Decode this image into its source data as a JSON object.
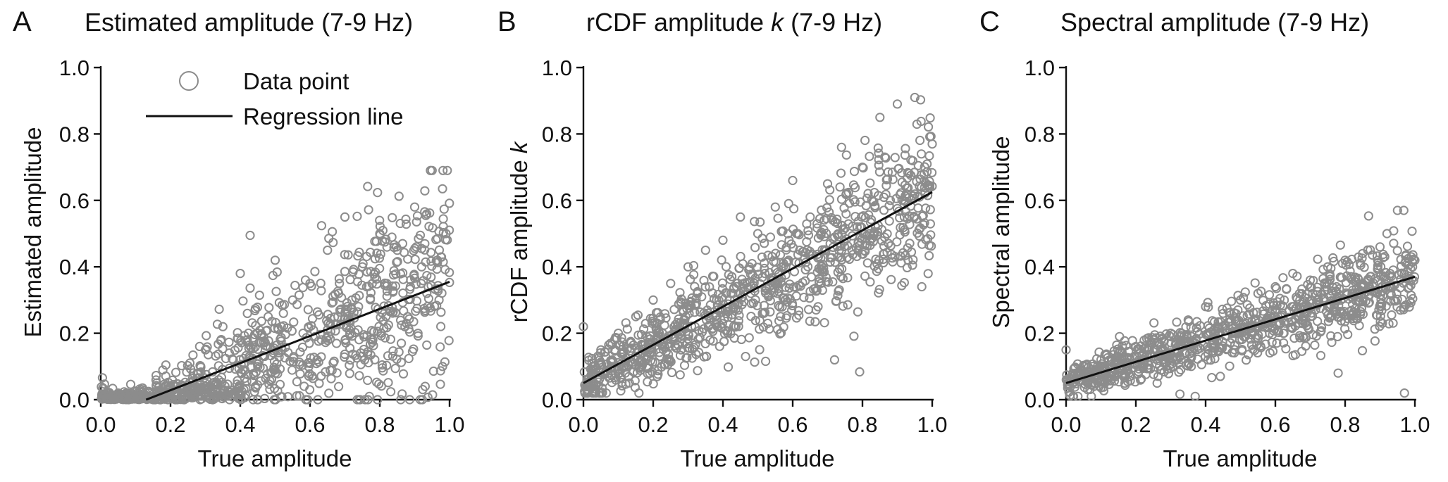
{
  "chart_data": [
    {
      "type": "scatter",
      "letter": "A",
      "title": "Estimated amplitude (7-9 Hz)",
      "xlabel": "True amplitude",
      "ylabel": "Estimated amplitude",
      "xlim": [
        0,
        1
      ],
      "ylim": [
        0,
        1
      ],
      "xticks": [
        "0.0",
        "0.2",
        "0.4",
        "0.6",
        "0.8",
        "1.0"
      ],
      "yticks": [
        "0.0",
        "0.2",
        "0.4",
        "0.6",
        "0.8",
        "1.0"
      ],
      "legend": {
        "position": "top-left",
        "point_label": "Data point",
        "line_label": "Regression line"
      },
      "regression": {
        "x": [
          0.13,
          1.0
        ],
        "y": [
          0.0,
          0.355
        ]
      },
      "points_summary": {
        "n": 1000,
        "x_range": [
          0,
          1
        ],
        "y_range": [
          0,
          0.69
        ],
        "description_hidden": true
      },
      "points": [
        [
          0.02,
          0.01
        ],
        [
          0.05,
          0.02
        ],
        [
          0.08,
          0.0
        ],
        [
          0.12,
          0.03
        ],
        [
          0.15,
          0.01
        ],
        [
          0.2,
          0.04
        ],
        [
          0.25,
          0.02
        ],
        [
          0.28,
          0.08
        ],
        [
          0.3,
          0.15
        ],
        [
          0.33,
          0.05
        ],
        [
          0.35,
          0.22
        ],
        [
          0.38,
          0.12
        ],
        [
          0.4,
          0.38
        ],
        [
          0.42,
          0.18
        ],
        [
          0.45,
          0.1
        ],
        [
          0.48,
          0.25
        ],
        [
          0.5,
          0.42
        ],
        [
          0.52,
          0.15
        ],
        [
          0.55,
          0.3
        ],
        [
          0.58,
          0.2
        ],
        [
          0.6,
          0.35
        ],
        [
          0.62,
          0.12
        ],
        [
          0.65,
          0.45
        ],
        [
          0.68,
          0.25
        ],
        [
          0.7,
          0.55
        ],
        [
          0.72,
          0.3
        ],
        [
          0.75,
          0.4
        ],
        [
          0.78,
          0.18
        ],
        [
          0.8,
          0.5
        ],
        [
          0.82,
          0.35
        ],
        [
          0.85,
          0.45
        ],
        [
          0.88,
          0.25
        ],
        [
          0.9,
          0.58
        ],
        [
          0.92,
          0.4
        ],
        [
          0.95,
          0.69
        ],
        [
          0.97,
          0.3
        ],
        [
          0.99,
          0.5
        ],
        [
          0.93,
          0.04
        ],
        [
          0.98,
          0.1
        ],
        [
          0.77,
          0.01
        ]
      ]
    },
    {
      "type": "scatter",
      "letter": "B",
      "title_prefix": "rCDF amplitude ",
      "title_italic": "k",
      "title_suffix": " (7-9 Hz)",
      "xlabel": "True amplitude",
      "ylabel_prefix": "rCDF amplitude ",
      "ylabel_italic": "k",
      "xlim": [
        0,
        1
      ],
      "ylim": [
        0,
        1
      ],
      "xticks": [
        "0.0",
        "0.2",
        "0.4",
        "0.6",
        "0.8",
        "1.0"
      ],
      "yticks": [
        "0.0",
        "0.2",
        "0.4",
        "0.6",
        "0.8",
        "1.0"
      ],
      "regression": {
        "x": [
          0.0,
          1.0
        ],
        "y": [
          0.05,
          0.625
        ]
      },
      "points_summary": {
        "n": 1000,
        "x_range": [
          0,
          1
        ],
        "y_range": [
          0.02,
          0.92
        ]
      },
      "points": [
        [
          0.0,
          0.22
        ],
        [
          0.03,
          0.05
        ],
        [
          0.05,
          0.15
        ],
        [
          0.08,
          0.1
        ],
        [
          0.1,
          0.2
        ],
        [
          0.12,
          0.08
        ],
        [
          0.15,
          0.25
        ],
        [
          0.18,
          0.12
        ],
        [
          0.2,
          0.3
        ],
        [
          0.22,
          0.18
        ],
        [
          0.25,
          0.35
        ],
        [
          0.28,
          0.15
        ],
        [
          0.3,
          0.4
        ],
        [
          0.32,
          0.22
        ],
        [
          0.35,
          0.45
        ],
        [
          0.38,
          0.25
        ],
        [
          0.4,
          0.48
        ],
        [
          0.42,
          0.3
        ],
        [
          0.45,
          0.55
        ],
        [
          0.48,
          0.32
        ],
        [
          0.5,
          0.5
        ],
        [
          0.52,
          0.38
        ],
        [
          0.55,
          0.58
        ],
        [
          0.58,
          0.4
        ],
        [
          0.6,
          0.66
        ],
        [
          0.62,
          0.45
        ],
        [
          0.65,
          0.55
        ],
        [
          0.68,
          0.5
        ],
        [
          0.7,
          0.65
        ],
        [
          0.72,
          0.12
        ],
        [
          0.74,
          0.76
        ],
        [
          0.77,
          0.45
        ],
        [
          0.8,
          0.7
        ],
        [
          0.82,
          0.5
        ],
        [
          0.85,
          0.85
        ],
        [
          0.88,
          0.6
        ],
        [
          0.9,
          0.89
        ],
        [
          0.92,
          0.55
        ],
        [
          0.95,
          0.91
        ],
        [
          0.97,
          0.34
        ],
        [
          1.0,
          0.77
        ]
      ]
    },
    {
      "type": "scatter",
      "letter": "C",
      "title": "Spectral amplitude (7-9 Hz)",
      "xlabel": "True amplitude",
      "ylabel": "Spectral amplitude",
      "xlim": [
        0,
        1
      ],
      "ylim": [
        0,
        1
      ],
      "xticks": [
        "0.0",
        "0.2",
        "0.4",
        "0.6",
        "0.8",
        "1.0"
      ],
      "yticks": [
        "0.0",
        "0.2",
        "0.4",
        "0.6",
        "0.8",
        "1.0"
      ],
      "regression": {
        "x": [
          0.0,
          1.0
        ],
        "y": [
          0.05,
          0.37
        ]
      },
      "points_summary": {
        "n": 1000,
        "x_range": [
          0,
          1
        ],
        "y_range": [
          0.01,
          0.57
        ]
      },
      "points": [
        [
          0.0,
          0.15
        ],
        [
          0.02,
          0.05
        ],
        [
          0.05,
          0.1
        ],
        [
          0.08,
          0.04
        ],
        [
          0.1,
          0.12
        ],
        [
          0.12,
          0.06
        ],
        [
          0.15,
          0.14
        ],
        [
          0.18,
          0.08
        ],
        [
          0.2,
          0.16
        ],
        [
          0.22,
          0.1
        ],
        [
          0.25,
          0.18
        ],
        [
          0.28,
          0.12
        ],
        [
          0.3,
          0.2
        ],
        [
          0.32,
          0.14
        ],
        [
          0.35,
          0.24
        ],
        [
          0.37,
          0.01
        ],
        [
          0.4,
          0.28
        ],
        [
          0.42,
          0.18
        ],
        [
          0.45,
          0.26
        ],
        [
          0.48,
          0.2
        ],
        [
          0.5,
          0.3
        ],
        [
          0.52,
          0.22
        ],
        [
          0.55,
          0.32
        ],
        [
          0.58,
          0.24
        ],
        [
          0.6,
          0.34
        ],
        [
          0.62,
          0.26
        ],
        [
          0.65,
          0.38
        ],
        [
          0.68,
          0.28
        ],
        [
          0.7,
          0.36
        ],
        [
          0.72,
          0.3
        ],
        [
          0.75,
          0.4
        ],
        [
          0.78,
          0.08
        ],
        [
          0.8,
          0.42
        ],
        [
          0.82,
          0.32
        ],
        [
          0.85,
          0.44
        ],
        [
          0.88,
          0.34
        ],
        [
          0.9,
          0.46
        ],
        [
          0.92,
          0.5
        ],
        [
          0.95,
          0.57
        ],
        [
          0.97,
          0.02
        ],
        [
          1.0,
          0.42
        ]
      ]
    }
  ]
}
